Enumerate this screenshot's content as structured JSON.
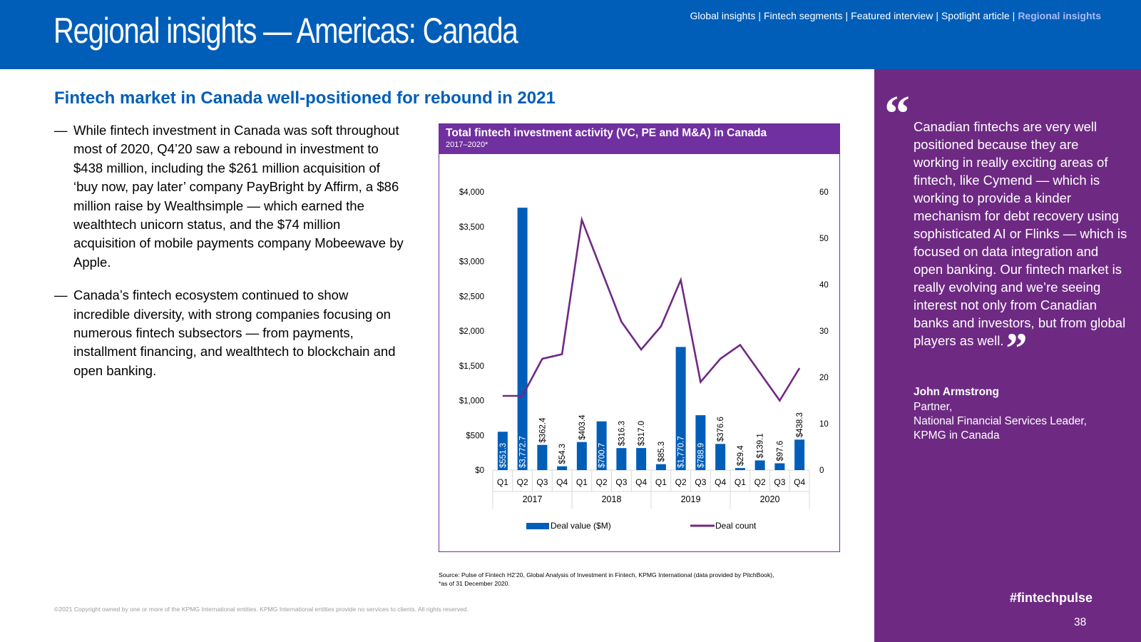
{
  "header": {
    "title": "Regional insights — Americas: Canada",
    "nav": [
      {
        "label": "Global insights",
        "active": false
      },
      {
        "label": "Fintech segments",
        "active": false
      },
      {
        "label": "Featured interview",
        "active": false
      },
      {
        "label": "Spotlight article",
        "active": false
      },
      {
        "label": "Regional insights",
        "active": true
      }
    ],
    "separator": "|"
  },
  "section_title": "Fintech market in Canada well-positioned for rebound in 2021",
  "bullets": {
    "dash": "—",
    "items": [
      "While fintech investment in Canada was soft throughout most of 2020, Q4’20 saw a rebound in investment to $438 million, including the $261 million acquisition of ‘buy now, pay later’ company PayBright by Affirm, a $86 million raise by Wealthsimple — which earned the wealthtech unicorn status, and the $74 million acquisition of mobile payments company Mobeewave by Apple.",
      "Canada’s fintech ecosystem continued to show incredible diversity, with strong companies focusing on numerous fintech subsectors — from payments, installment financing, and wealthtech to blockchain and open banking."
    ]
  },
  "chart_data": {
    "type": "bar",
    "title": "Total fintech investment activity (VC, PE and M&A) in Canada",
    "subtitle": "2017–2020*",
    "categories": [
      "Q1",
      "Q2",
      "Q3",
      "Q4",
      "Q1",
      "Q2",
      "Q3",
      "Q4",
      "Q1",
      "Q2",
      "Q3",
      "Q4",
      "Q1",
      "Q2",
      "Q3",
      "Q4"
    ],
    "years": [
      "2017",
      "2018",
      "2019",
      "2020"
    ],
    "series": [
      {
        "name": "Deal value ($M)",
        "kind": "bar",
        "axis": "left",
        "color": "#005eb8",
        "values": [
          551.3,
          3772.7,
          362.4,
          54.3,
          403.4,
          700.7,
          316.3,
          317.0,
          85.3,
          1770.7,
          788.9,
          376.6,
          29.4,
          139.1,
          97.6,
          438.3
        ],
        "labels": [
          "$551.3",
          "$3,772.7",
          "$362.4",
          "$54.3",
          "$403.4",
          "$700.7",
          "$316.3",
          "$317.0",
          "$85.3",
          "$1,770.7",
          "$788.9",
          "$376.6",
          "$29.4",
          "$139.1",
          "$97.6",
          "$438.3"
        ]
      },
      {
        "name": "Deal count",
        "kind": "line",
        "axis": "right",
        "color": "#6e2a83",
        "values": [
          16,
          16,
          24,
          25,
          54,
          43,
          32,
          26,
          31,
          41,
          19,
          24,
          27,
          21,
          15,
          22
        ]
      }
    ],
    "y_left": {
      "min": 0,
      "max": 4000,
      "ticks": [
        0,
        500,
        1000,
        1500,
        2000,
        2500,
        3000,
        3500,
        4000
      ],
      "tick_labels": [
        "$0",
        "$500",
        "$1,000",
        "$1,500",
        "$2,000",
        "$2,500",
        "$3,000",
        "$3,500",
        "$4,000"
      ]
    },
    "y_right": {
      "min": 0,
      "max": 60,
      "ticks": [
        0,
        10,
        20,
        30,
        40,
        50,
        60
      ],
      "tick_labels": [
        "0",
        "10",
        "20",
        "30",
        "40",
        "50",
        "60"
      ]
    },
    "legend_position": "bottom",
    "grid": false
  },
  "source": [
    "Source: Pulse of Fintech H2’20, Global Analysis of Investment in Fintech, KPMG International (data provided by PitchBook),",
    "*as of 31 December 2020."
  ],
  "copyright": "©2021 Copyright owned by one or more of the KPMG International entities. KPMG International entities provide no services to clients. All rights reserved.",
  "quote": {
    "open_mark": "“",
    "close_mark": "”",
    "text": "Canadian fintechs are very well positioned because they are working in really exciting areas of fintech, like Cymend — which is working to provide a kinder mechanism for debt recovery using sophisticated AI or Flinks — which is focused on data integration and open banking. Our fintech market is really evolving and we’re seeing interest not only from Canadian banks and investors, but from global players as well.",
    "name": "John Armstrong",
    "role_lines": [
      "Partner,",
      "National Financial Services Leader,",
      "KPMG in Canada"
    ]
  },
  "footer": {
    "hashtag": "#fintechpulse",
    "page_number": "38"
  }
}
